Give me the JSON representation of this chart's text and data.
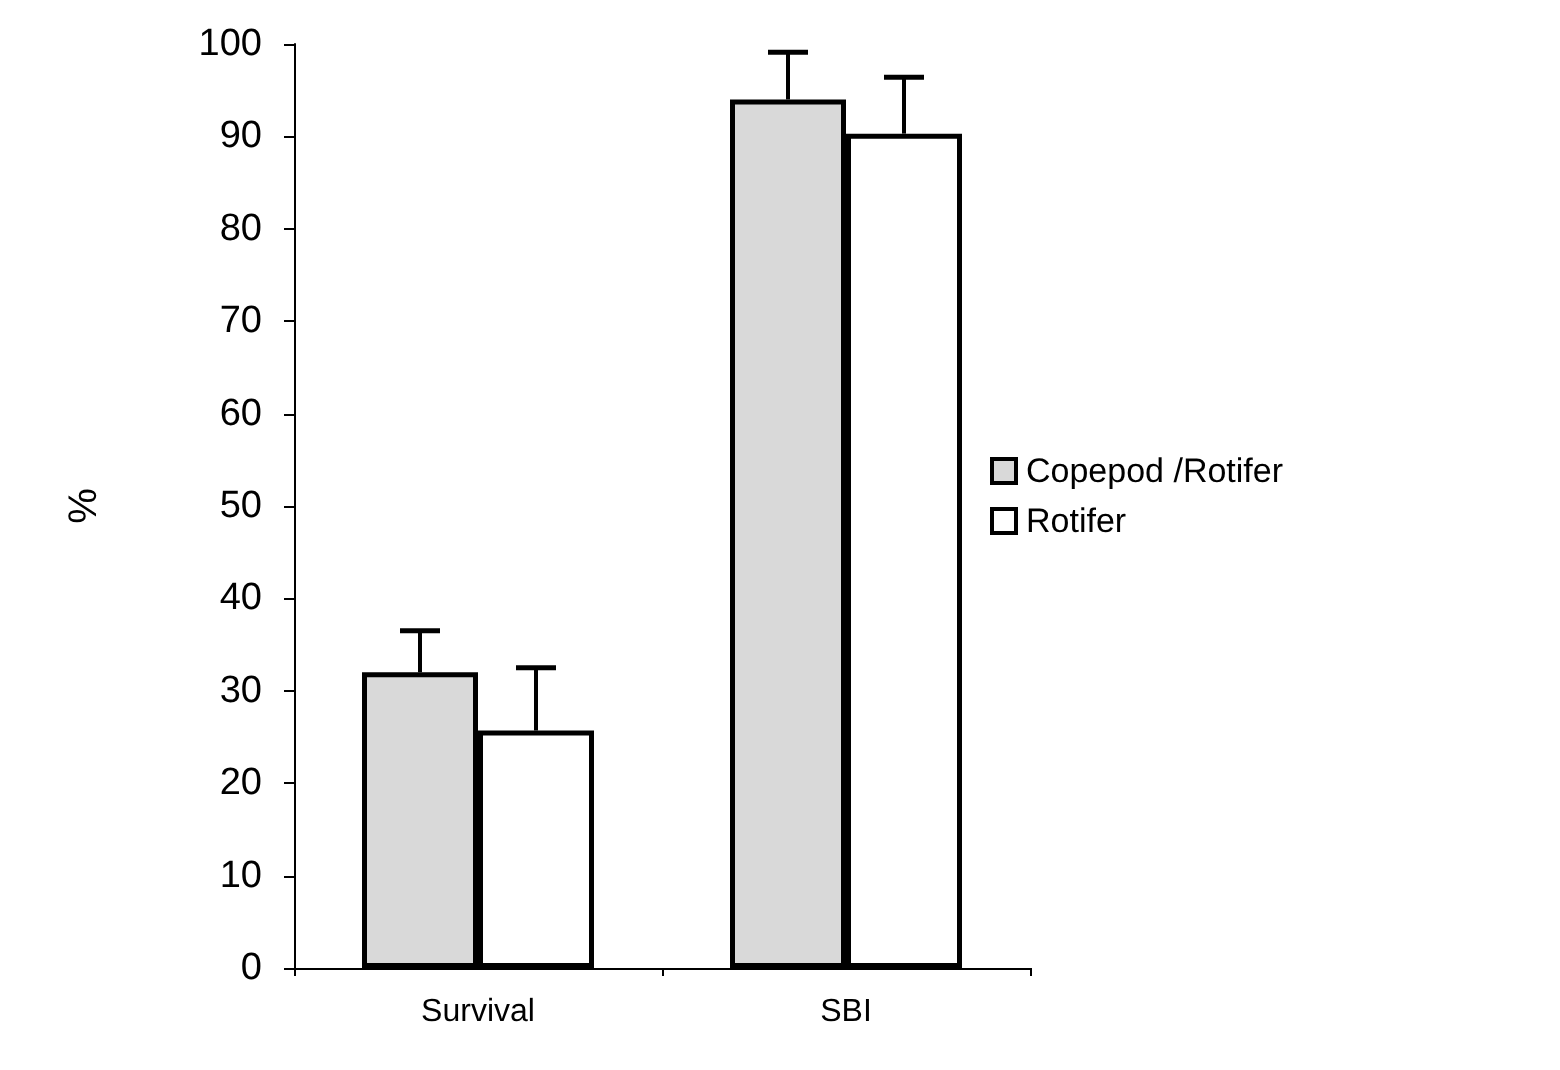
{
  "chart_data": {
    "type": "bar",
    "ylabel": "%",
    "categories": [
      "Survival",
      "SBI"
    ],
    "series": [
      {
        "name": "Copepod /Rotifer",
        "color": "#d9d9d9",
        "values": [
          32,
          94
        ],
        "errors": [
          [
            32,
            36.5
          ],
          [
            94,
            99.1
          ]
        ]
      },
      {
        "name": "Rotifer",
        "color": "#ffffff",
        "values": [
          25.7,
          90.3
        ],
        "errors": [
          [
            25.7,
            32.5
          ],
          [
            90.3,
            96.4
          ]
        ]
      }
    ],
    "ylim": [
      0,
      100
    ],
    "yticks": [
      0,
      10,
      20,
      30,
      40,
      50,
      60,
      70,
      80,
      90,
      100
    ],
    "grid": false,
    "legend": "right"
  }
}
